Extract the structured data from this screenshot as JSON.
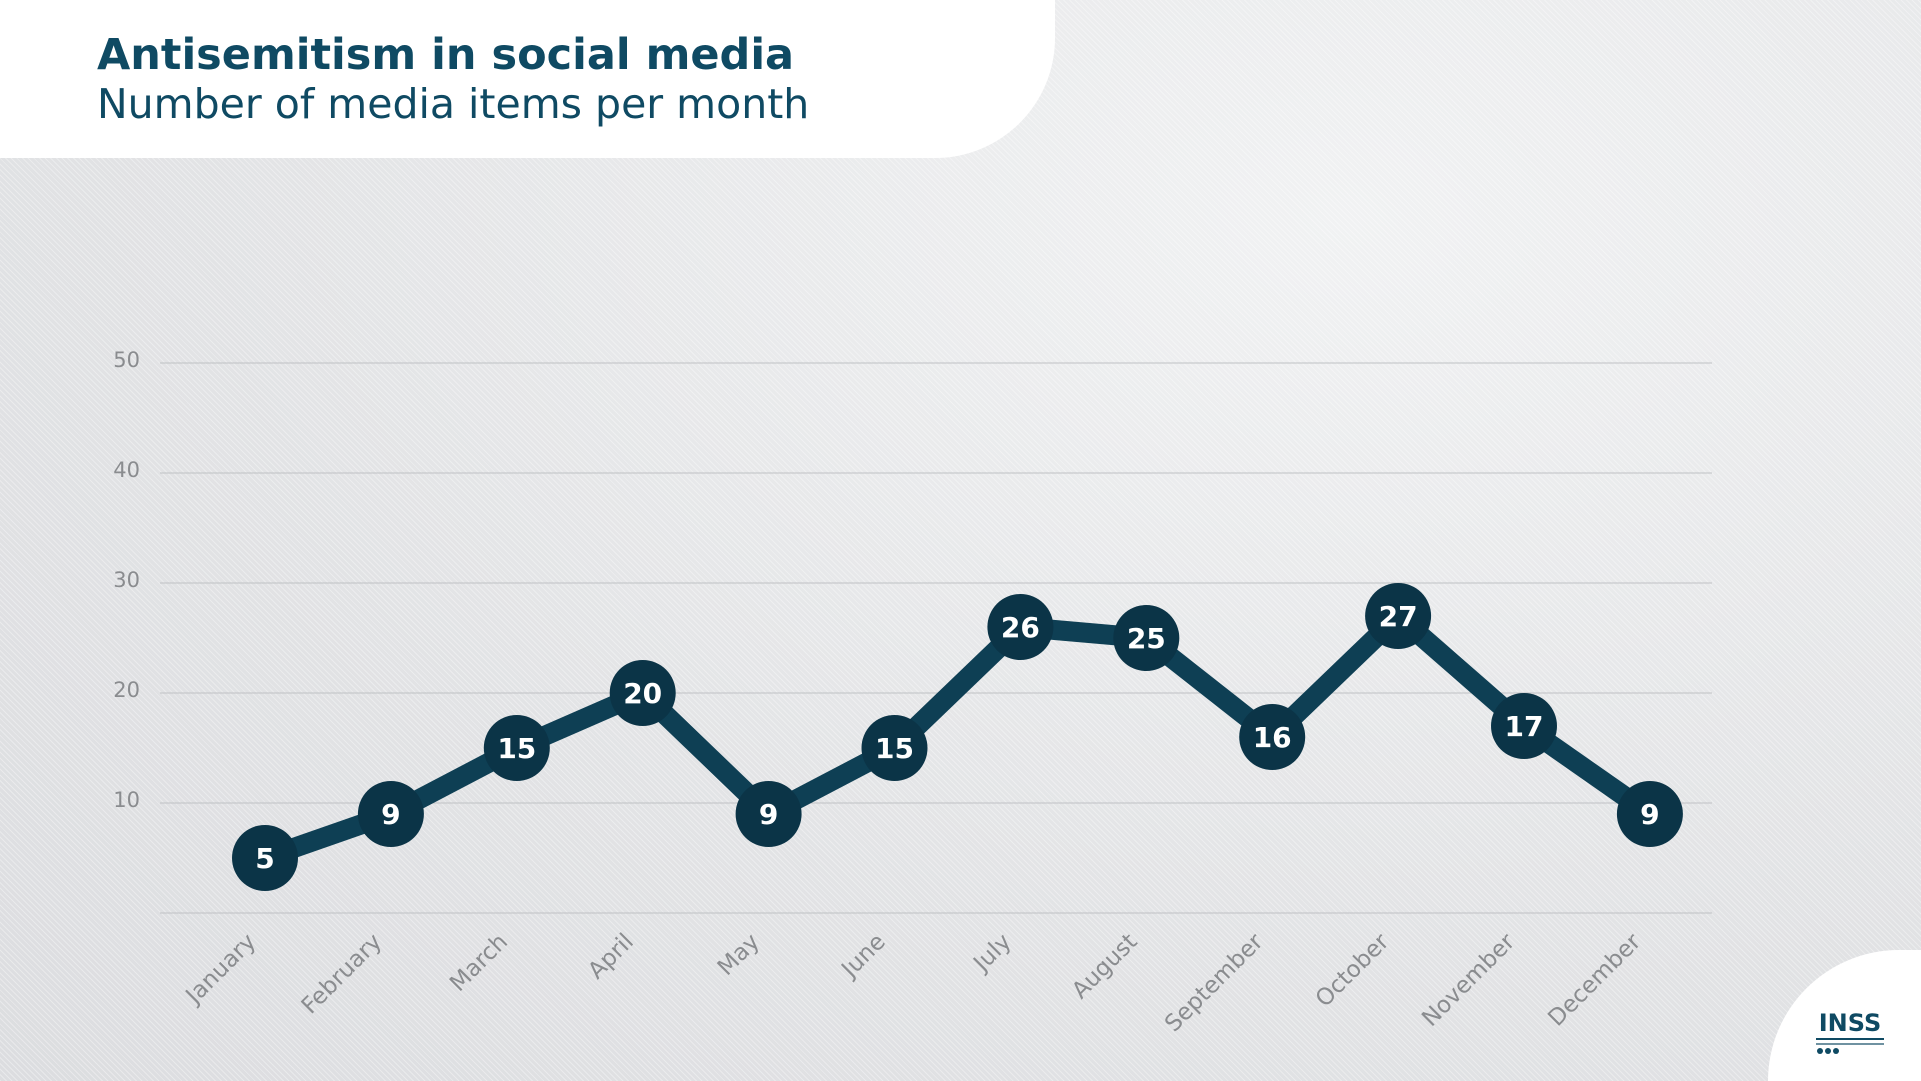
{
  "header": {
    "title": "Antisemitism in social media",
    "subtitle": "Number of media items per month"
  },
  "logo": {
    "text": "INSS",
    "icon": "inss-logo-icon"
  },
  "colors": {
    "line": "#0e3f54",
    "marker": "#0b3447",
    "marker_text": "#ffffff",
    "grid": "#bfc1c4",
    "axis_text": "#8a8c8f",
    "title": "#0f4a63"
  },
  "chart_data": {
    "type": "line",
    "categories": [
      "January",
      "February",
      "March",
      "April",
      "May",
      "June",
      "July",
      "August",
      "September",
      "October",
      "November",
      "December"
    ],
    "values": [
      5,
      9,
      15,
      20,
      9,
      15,
      26,
      25,
      16,
      27,
      17,
      9
    ],
    "yticks": [
      10,
      20,
      30,
      40,
      50
    ],
    "ylim": [
      0,
      50
    ],
    "grid": true,
    "data_labels": true,
    "title": "Antisemitism in social media",
    "subtitle": "Number of media items per month"
  }
}
